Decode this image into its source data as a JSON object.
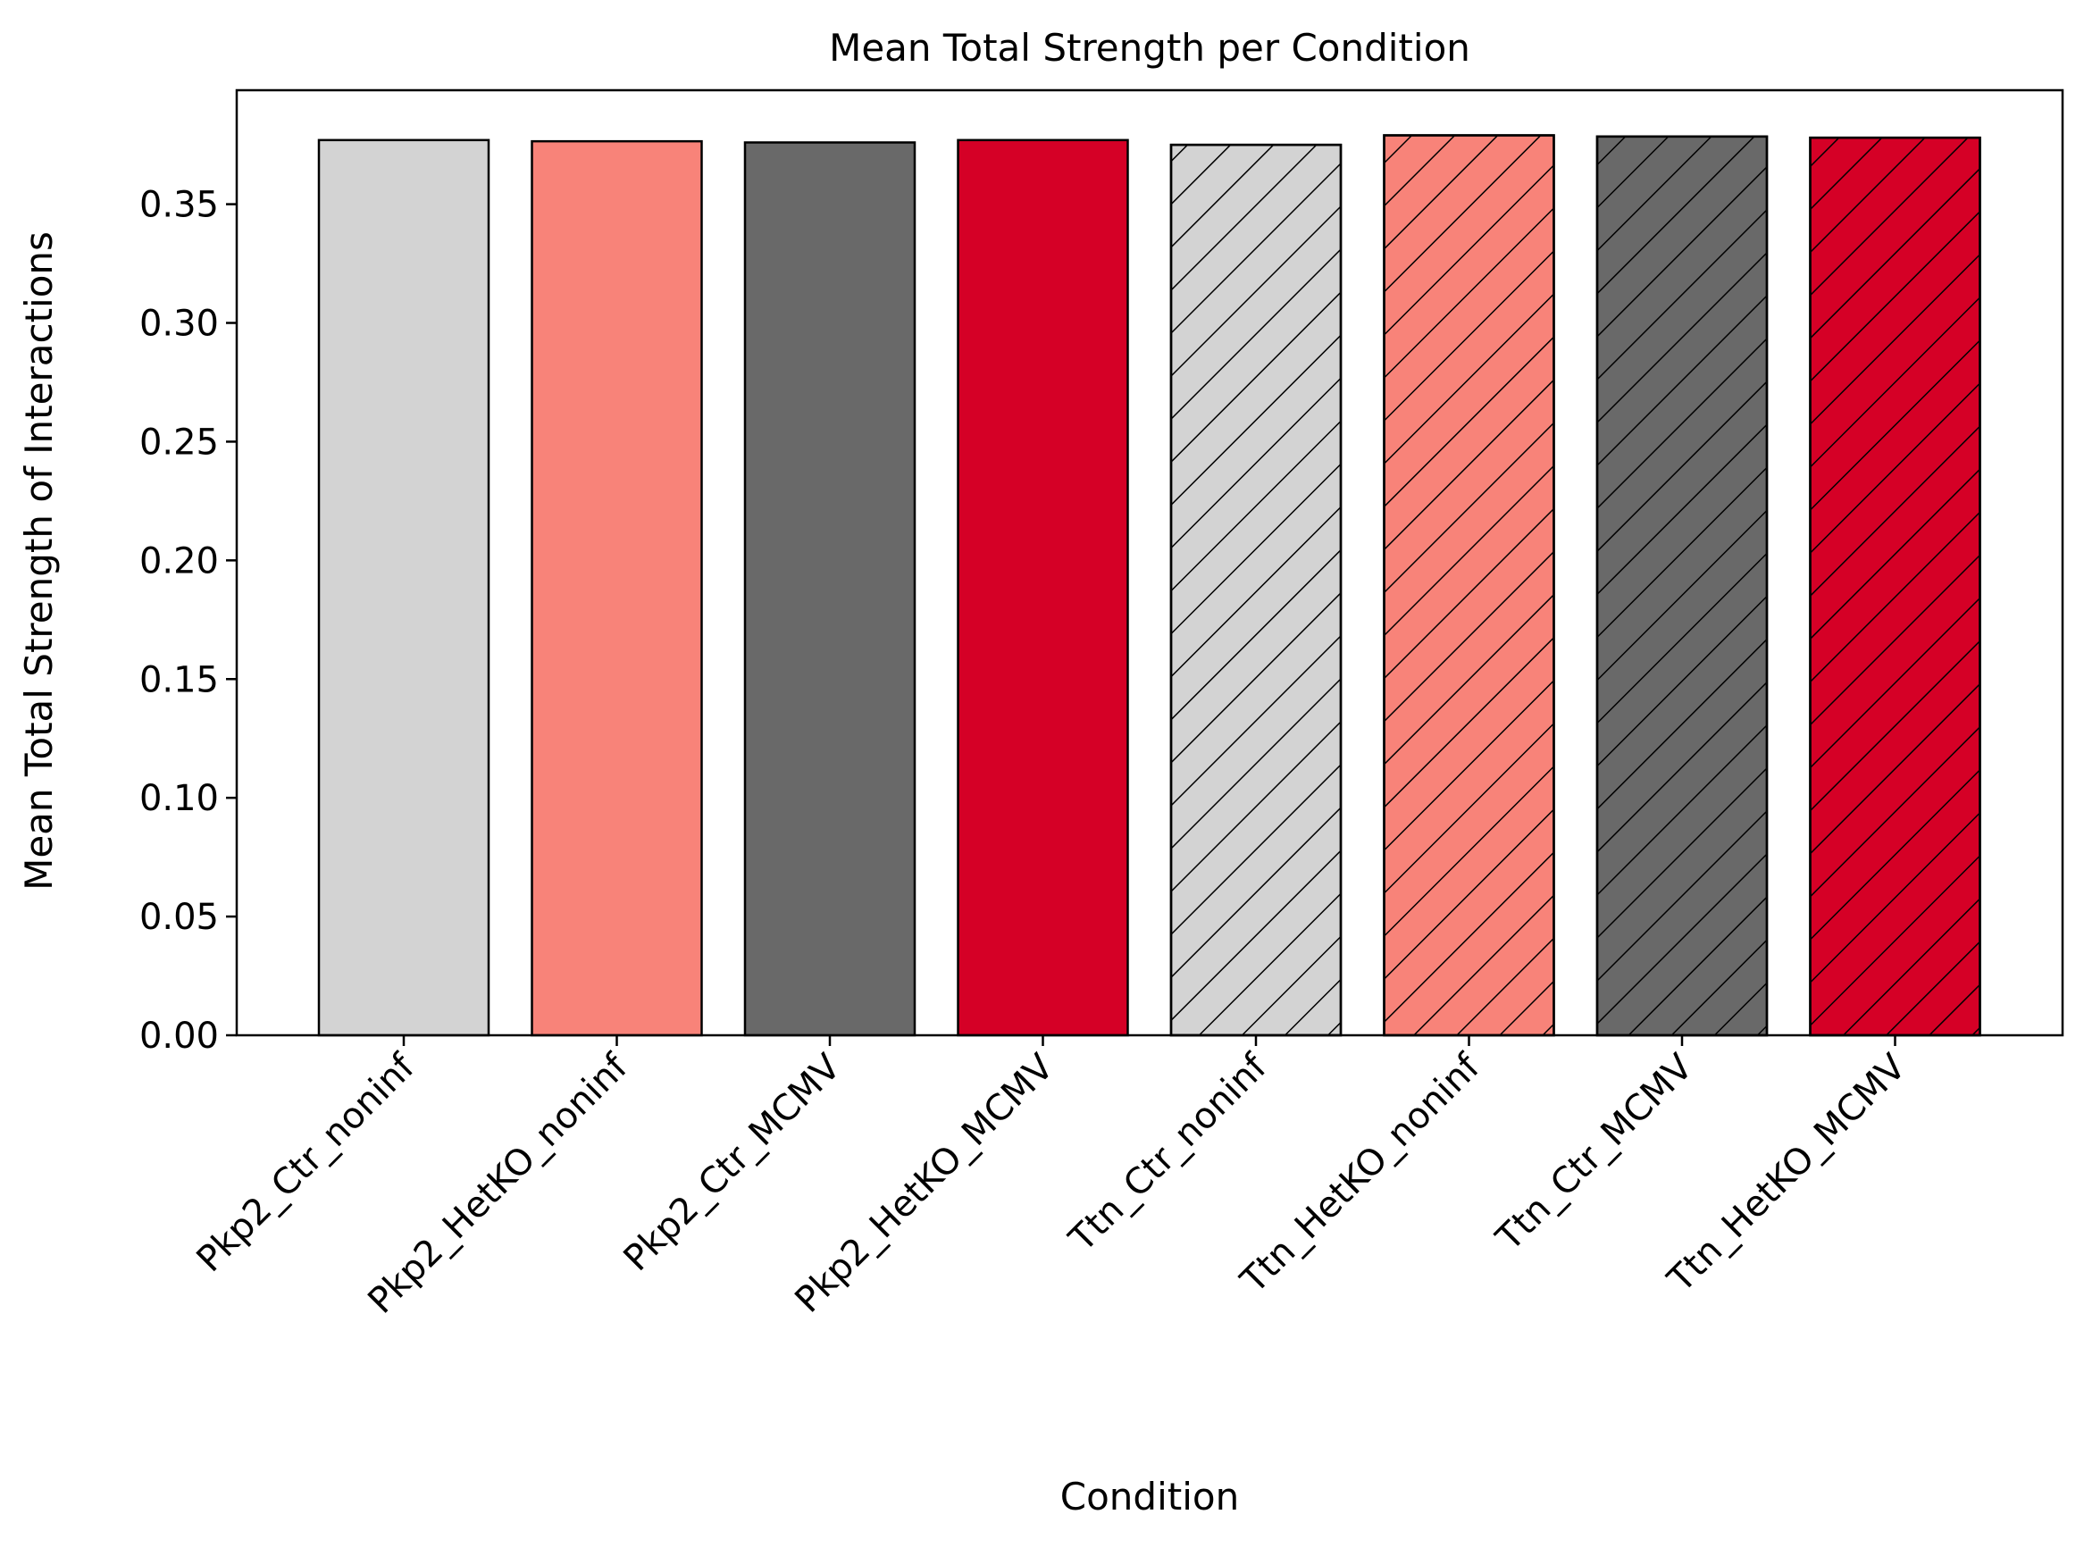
{
  "chart_data": {
    "type": "bar",
    "title": "Mean Total Strength per Condition",
    "xlabel": "Condition",
    "ylabel": "Mean Total Strength of Interactions",
    "ylim": [
      0,
      0.398
    ],
    "yticks": [
      0.0,
      0.05,
      0.1,
      0.15,
      0.2,
      0.25,
      0.3,
      0.35
    ],
    "ytick_labels": [
      "0.00",
      "0.05",
      "0.10",
      "0.15",
      "0.20",
      "0.25",
      "0.30",
      "0.35"
    ],
    "grid": false,
    "legend": "none",
    "categories": [
      "Pkp2_Ctr_noninf",
      "Pkp2_HetKO_noninf",
      "Pkp2_Ctr_MCMV",
      "Pkp2_HetKO_MCMV",
      "Ttn_Ctr_noninf",
      "Ttn_HetKO_noninf",
      "Ttn_Ctr_MCMV",
      "Ttn_HetKO_MCMV"
    ],
    "values": [
      0.377,
      0.3765,
      0.376,
      0.377,
      0.375,
      0.379,
      0.3785,
      0.378
    ],
    "colors": [
      "#d3d3d3",
      "#f88379",
      "#696969",
      "#d50026",
      "#d3d3d3",
      "#f88379",
      "#696969",
      "#d50026"
    ],
    "hatched": [
      false,
      false,
      false,
      false,
      true,
      true,
      true,
      true
    ],
    "edge_color": "#000000"
  }
}
